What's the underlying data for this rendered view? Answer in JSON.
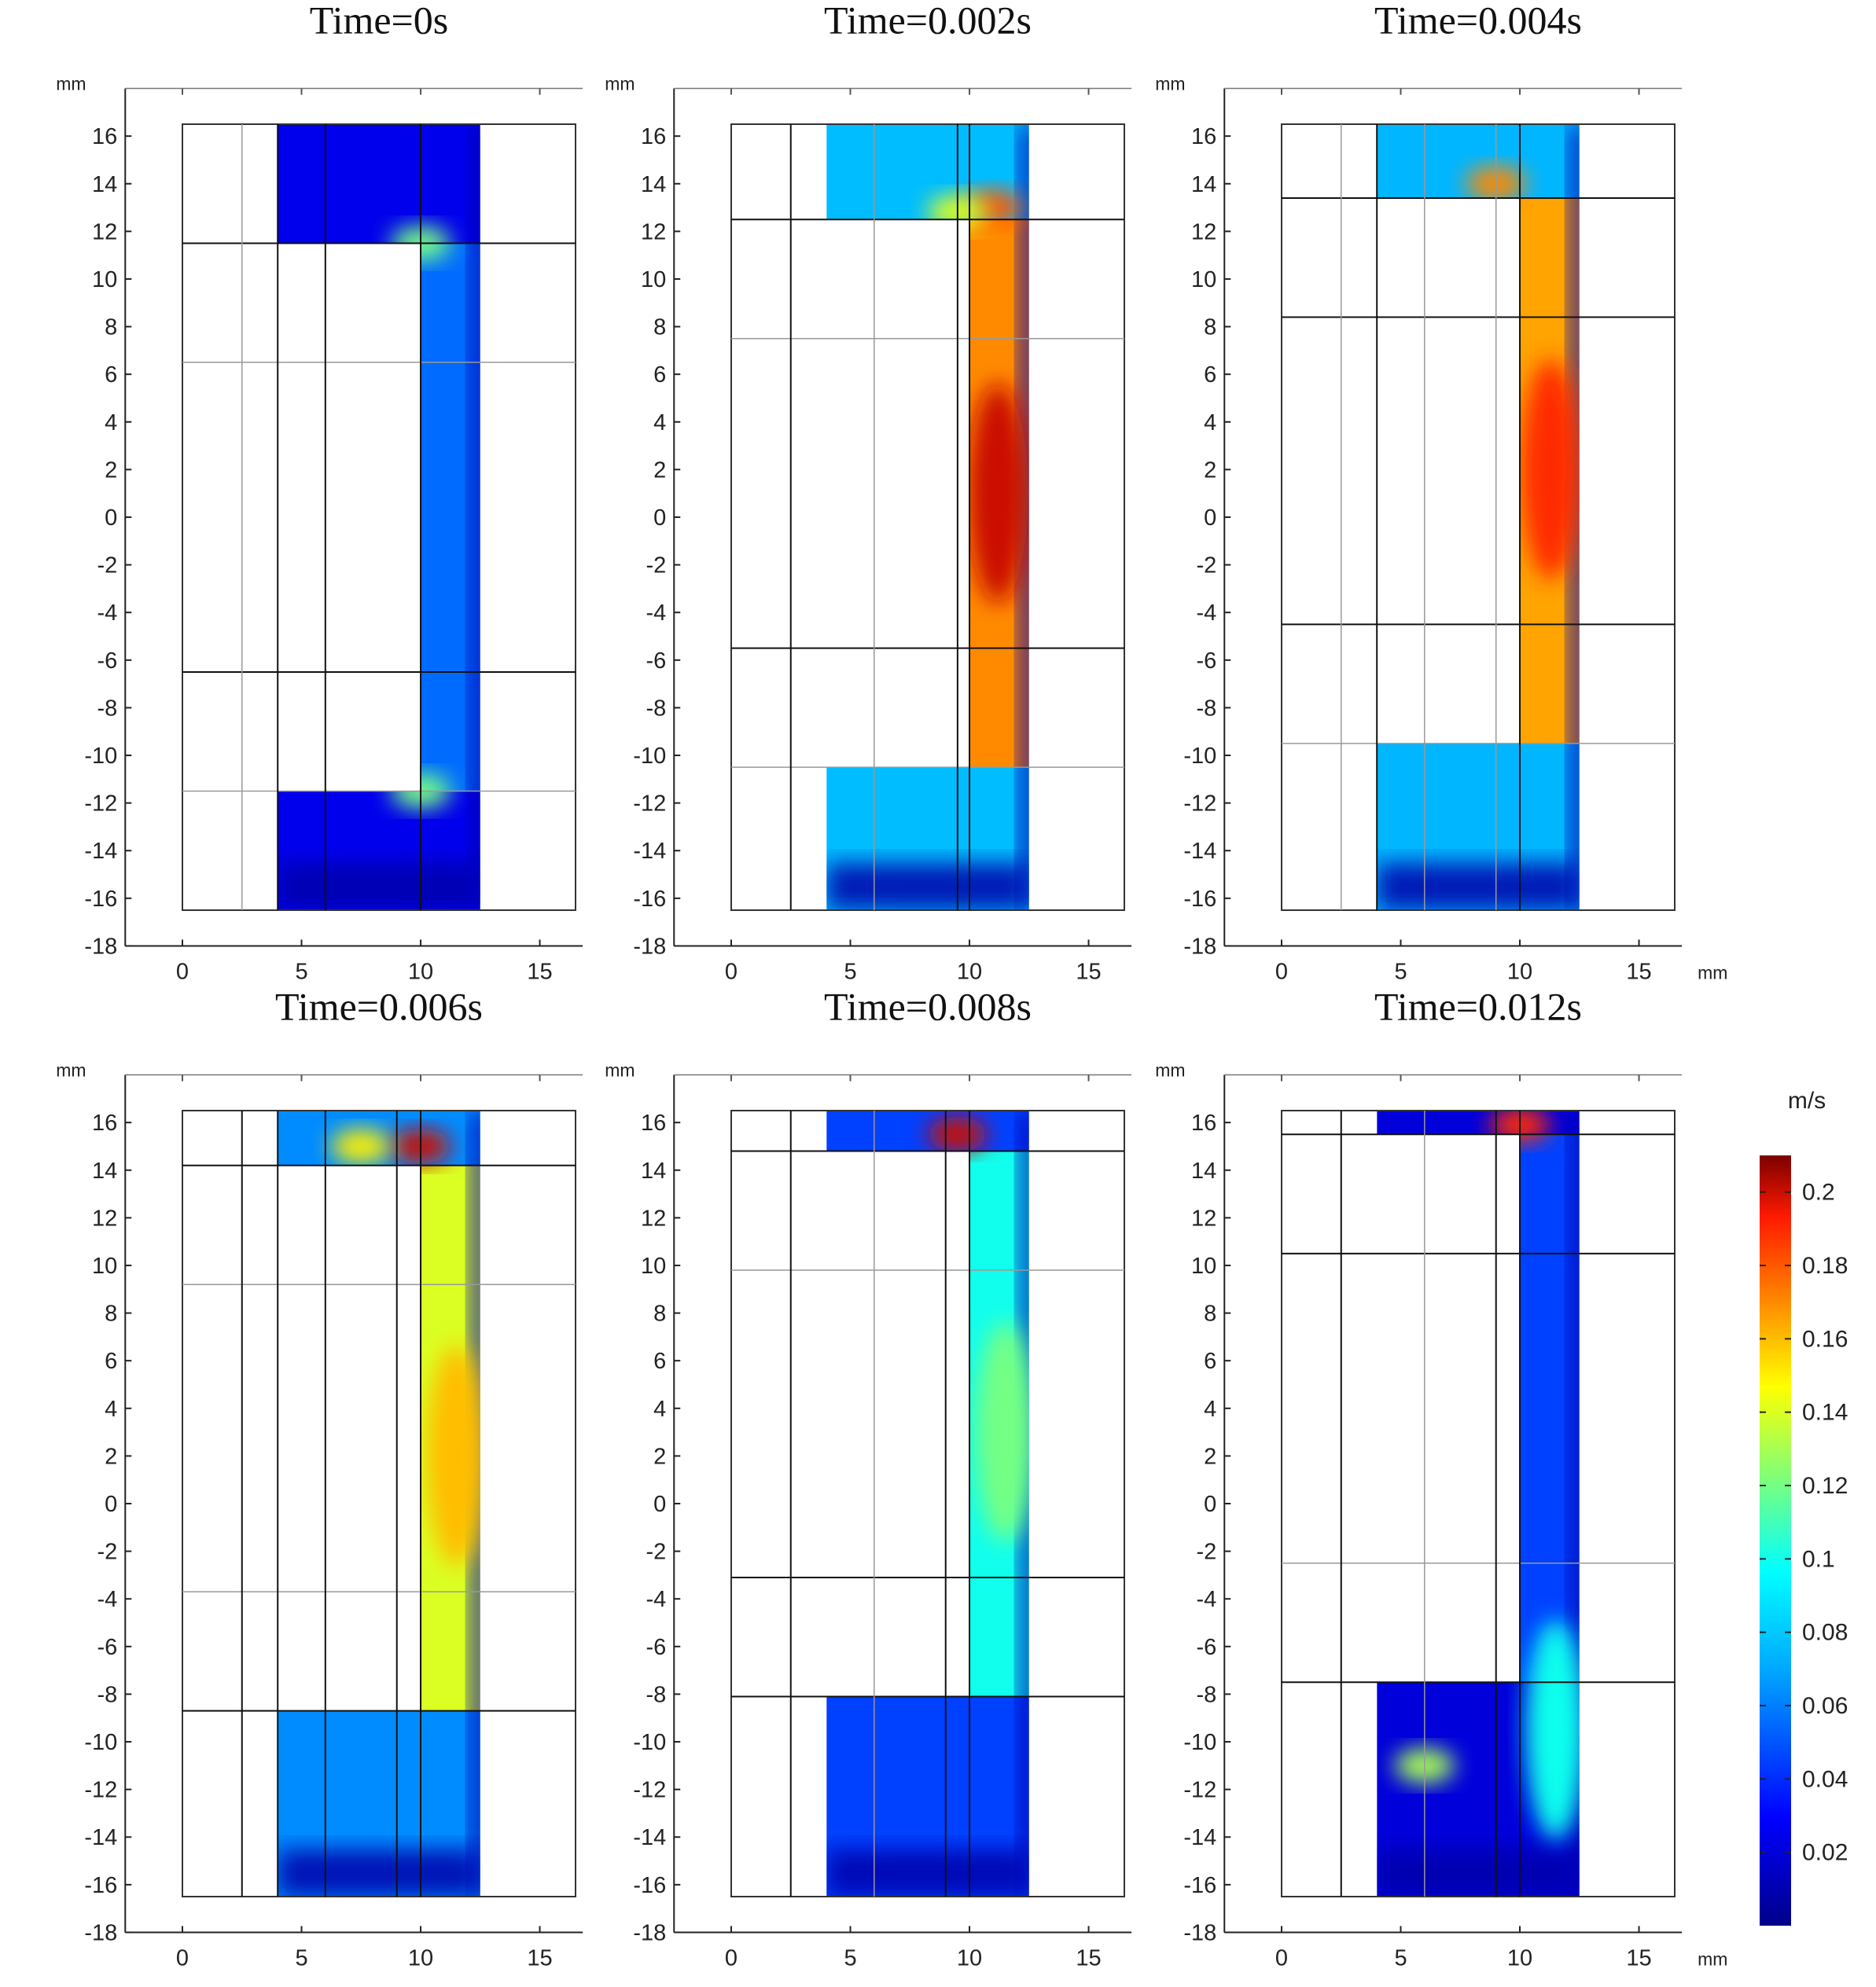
{
  "chart_data": {
    "type": "heatmap",
    "quantity_unit": "m/s",
    "x_unit": "mm",
    "y_unit": "mm",
    "xlim": [
      -2.4,
      16.8
    ],
    "ylim": [
      -18,
      18
    ],
    "xticks": [
      0,
      5,
      10,
      15
    ],
    "yticks": [
      16,
      14,
      12,
      10,
      8,
      6,
      4,
      2,
      0,
      -2,
      -4,
      -6,
      -8,
      -10,
      -12,
      -14,
      -16,
      -18
    ],
    "domain": {
      "outer_x": [
        0,
        16.5
      ],
      "y": [
        -16.5,
        16.5
      ],
      "fluid_x": [
        4,
        12.5
      ],
      "channel_x": [
        10,
        12.5
      ]
    },
    "colorbar": {
      "unit": "m/s",
      "min": 0,
      "max": 0.21,
      "ticks": [
        0.2,
        0.18,
        0.16,
        0.14,
        0.12,
        0.1,
        0.08,
        0.06,
        0.04,
        0.02
      ],
      "tick_labels": [
        "0.2",
        "0.18",
        "0.16",
        "0.14",
        "0.12",
        "0.1",
        "0.08",
        "0.06",
        "0.04",
        "0.02"
      ]
    },
    "panels": [
      {
        "title": "Time=0s",
        "lower_level": -11.5,
        "upper_level": 11.5,
        "hlines": [
          11.5,
          -6.5
        ],
        "hlines_light": [
          6.5,
          -11.5
        ],
        "vlines": [
          4,
          6,
          10
        ],
        "vlines_light": [
          2.5
        ],
        "channel_velocity": 0.055,
        "hotspots": [
          {
            "x": 10,
            "y": 11.5,
            "v": 0.12
          },
          {
            "x": 10,
            "y": -11.5,
            "v": 0.12
          }
        ]
      },
      {
        "title": "Time=0.002s",
        "lower_level": -10.5,
        "upper_level": 12.5,
        "hlines": [
          12.5,
          -5.5
        ],
        "hlines_light": [
          7.5,
          -10.5
        ],
        "vlines": [
          2.5,
          9.5,
          10
        ],
        "vlines_light": [
          6
        ],
        "channel_velocity": 0.17,
        "hotspots": [
          {
            "x": 11.2,
            "y": 1,
            "v": 0.2
          },
          {
            "x": 11,
            "y": 13,
            "v": 0.18
          },
          {
            "x": 9.5,
            "y": 12.8,
            "v": 0.14
          }
        ]
      },
      {
        "title": "Time=0.004s",
        "lower_level": -9.5,
        "upper_level": 13.4,
        "hlines": [
          13.4,
          8.4,
          -4.5
        ],
        "hlines_light": [
          -9.5
        ],
        "vlines": [
          4,
          10
        ],
        "vlines_light": [
          2.5,
          6,
          9
        ],
        "channel_velocity": 0.165,
        "hotspots": [
          {
            "x": 11.3,
            "y": 2,
            "v": 0.19
          },
          {
            "x": 9,
            "y": 14,
            "v": 0.17
          }
        ]
      },
      {
        "title": "Time=0.006s",
        "lower_level": -8.7,
        "upper_level": 14.2,
        "hlines": [
          14.2,
          -8.7
        ],
        "hlines_light": [
          9.2,
          -3.7
        ],
        "vlines": [
          2.5,
          4,
          6,
          9,
          10
        ],
        "vlines_light": [],
        "channel_velocity": 0.14,
        "hotspots": [
          {
            "x": 10,
            "y": 15,
            "v": 0.2
          },
          {
            "x": 11.5,
            "y": 2,
            "v": 0.16
          },
          {
            "x": 7.5,
            "y": 15,
            "v": 0.15
          }
        ]
      },
      {
        "title": "Time=0.008s",
        "lower_level": -8.1,
        "upper_level": 14.8,
        "hlines": [
          14.8,
          -3.1,
          -8.1
        ],
        "hlines_light": [
          9.8
        ],
        "vlines": [
          2.5,
          9,
          10
        ],
        "vlines_light": [
          6
        ],
        "channel_velocity": 0.1,
        "hotspots": [
          {
            "x": 9.5,
            "y": 15.5,
            "v": 0.2
          },
          {
            "x": 11.5,
            "y": 3,
            "v": 0.12
          }
        ]
      },
      {
        "title": "Time=0.012s",
        "lower_level": -7.5,
        "upper_level": 15.5,
        "hlines": [
          15.5,
          10.5,
          -7.5
        ],
        "hlines_light": [
          -2.5
        ],
        "vlines": [
          2.5,
          9,
          10
        ],
        "vlines_light": [
          6
        ],
        "channel_velocity": 0.045,
        "hotspots": [
          {
            "x": 10,
            "y": 15.9,
            "v": 0.19
          },
          {
            "x": 6,
            "y": -11,
            "v": 0.13
          },
          {
            "x": 11.5,
            "y": -9.5,
            "v": 0.1
          }
        ]
      }
    ]
  }
}
